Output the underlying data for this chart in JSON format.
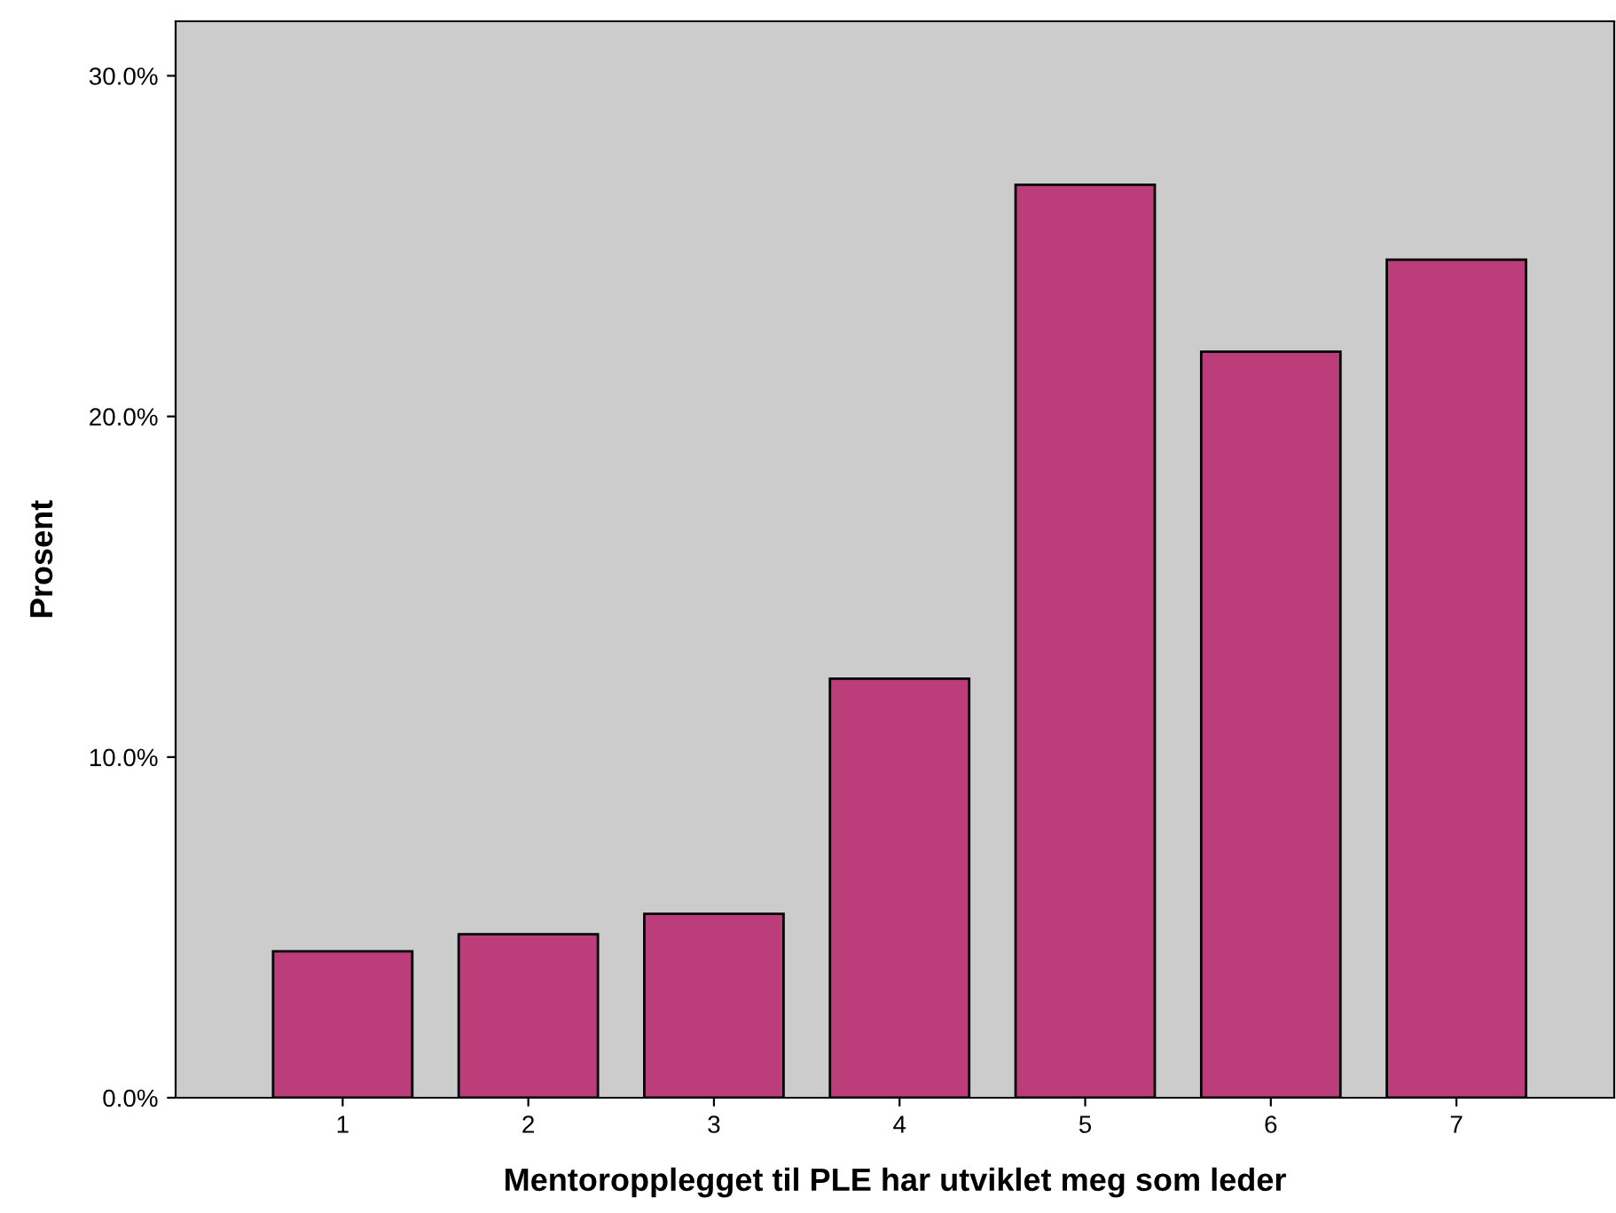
{
  "chart_data": {
    "type": "bar",
    "xlabel": "Mentoropplegget til PLE har utviklet meg som leder",
    "ylabel": "Prosent",
    "categories": [
      "1",
      "2",
      "3",
      "4",
      "5",
      "6",
      "7"
    ],
    "values": [
      4.3,
      4.8,
      5.4,
      12.3,
      26.8,
      21.9,
      24.6
    ],
    "color": "#bb3d7a",
    "ylim": [
      0,
      31.6
    ],
    "yticks": [
      {
        "value": 0,
        "label": "0.0%"
      },
      {
        "value": 10,
        "label": "10.0%"
      },
      {
        "value": 20,
        "label": "20.0%"
      },
      {
        "value": 30,
        "label": "30.0%"
      }
    ],
    "grid": false
  }
}
